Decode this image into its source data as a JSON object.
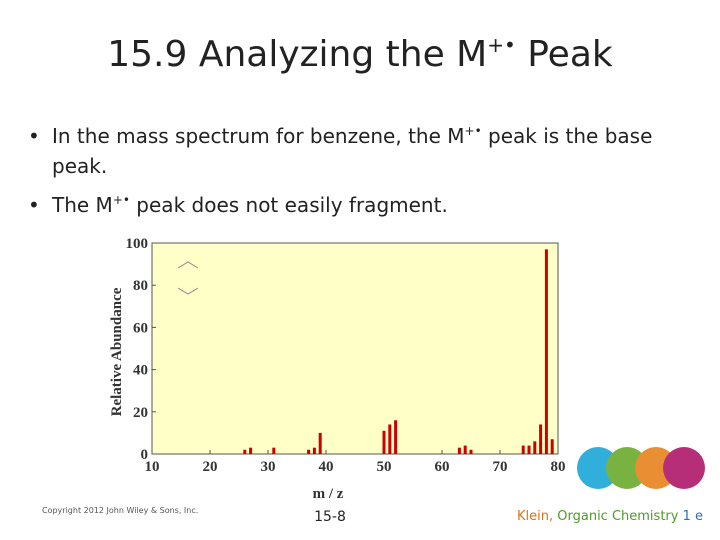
{
  "slide": {
    "title": {
      "main": "15.9 Analyzing the M",
      "sup": "+•",
      "tail": " Peak"
    },
    "bullets": [
      {
        "a": "In the mass spectrum for benzene, the M",
        "sup": "+•",
        "b": " peak is the base",
        "c": "peak."
      },
      {
        "a": "The M",
        "sup": "+•",
        "b": " peak does not easily fragment."
      }
    ],
    "footer": {
      "copyright": "Copyright 2012 John Wiley & Sons, Inc.",
      "page": "15-8",
      "author": "Klein,",
      "book": " Organic Chemistry",
      "edition": " 1 e"
    }
  },
  "chart_data": {
    "type": "bar",
    "xlabel": "m / z",
    "ylabel": "Relative Abundance",
    "x": [
      26,
      27,
      31,
      37,
      38,
      39,
      50,
      51,
      52,
      63,
      64,
      65,
      74,
      75,
      76,
      77,
      78,
      79
    ],
    "values": [
      2,
      3,
      3,
      2,
      3,
      10,
      11,
      14,
      16,
      3,
      4,
      2,
      4,
      4,
      6,
      14,
      97,
      7
    ],
    "color": "#cc0000",
    "xlim": [
      10,
      80
    ],
    "xticks": [
      10,
      20,
      30,
      40,
      50,
      60,
      70,
      80
    ],
    "ylim": [
      0,
      100
    ],
    "yticks": [
      0,
      20,
      40,
      60,
      80,
      100
    ]
  }
}
